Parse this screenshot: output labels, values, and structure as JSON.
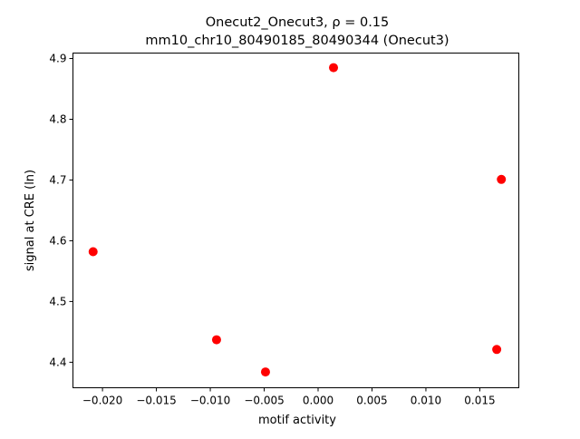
{
  "chart_data": {
    "type": "scatter",
    "title_line1": "Onecut2_Onecut3, ρ = 0.15",
    "title_line2": "mm10_chr10_80490185_80490344 (Onecut3)",
    "xlabel": "motif activity",
    "ylabel": "signal at CRE (ln)",
    "xlim": [
      -0.02274,
      0.01862
    ],
    "ylim": [
      4.358,
      4.909
    ],
    "xticks": [
      -0.02,
      -0.015,
      -0.01,
      -0.005,
      0.0,
      0.005,
      0.01,
      0.015
    ],
    "xtick_labels": [
      "−0.020",
      "−0.015",
      "−0.010",
      "−0.005",
      "0.000",
      "0.005",
      "0.010",
      "0.015"
    ],
    "yticks": [
      4.4,
      4.5,
      4.6,
      4.7,
      4.8,
      4.9
    ],
    "ytick_labels": [
      "4.4",
      "4.5",
      "4.6",
      "4.7",
      "4.8",
      "4.9"
    ],
    "grid": false,
    "color": "#ff0000",
    "points": [
      {
        "x": -0.02087,
        "y": 4.582
      },
      {
        "x": -0.00942,
        "y": 4.437
      },
      {
        "x": -0.00488,
        "y": 4.384
      },
      {
        "x": 0.00143,
        "y": 4.885
      },
      {
        "x": 0.01657,
        "y": 4.421
      },
      {
        "x": 0.017,
        "y": 4.701
      }
    ]
  }
}
